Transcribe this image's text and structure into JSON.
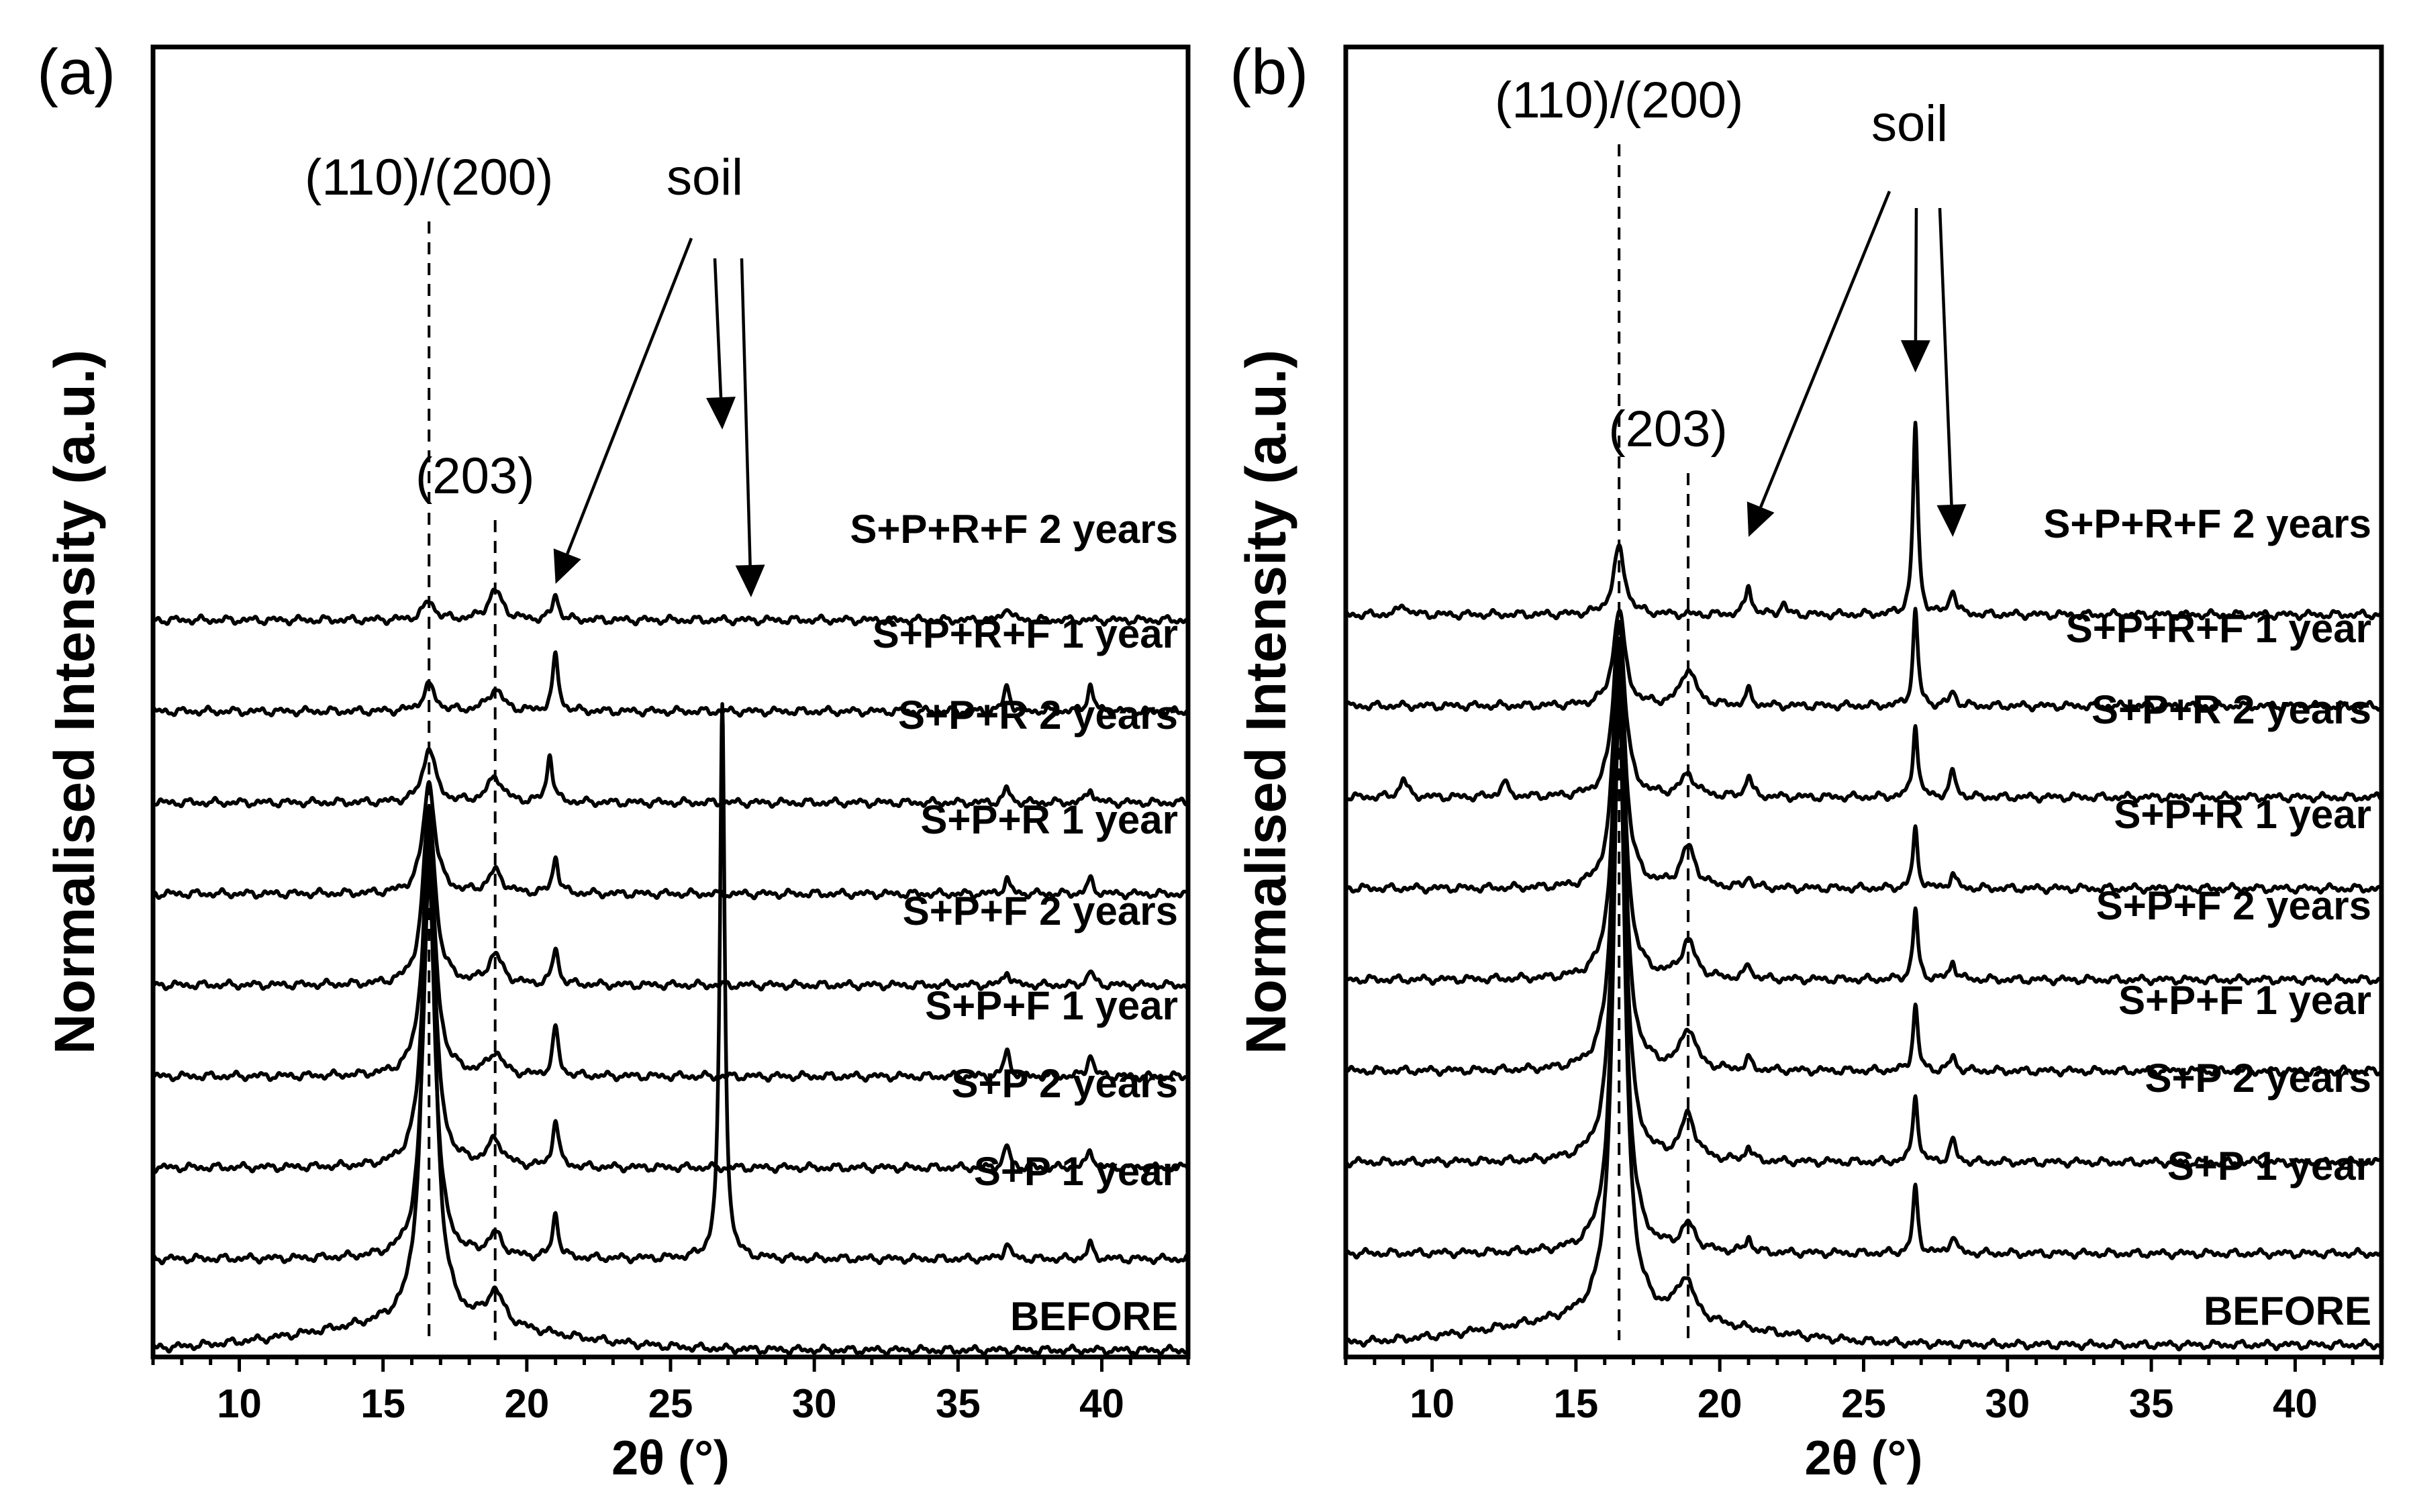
{
  "chart_data": [
    {
      "type": "line",
      "panel_label": "(a)",
      "xlabel": "2θ (°)",
      "ylabel": "Normalised Intensity (a.u.)",
      "xlim": [
        7,
        43
      ],
      "x_ticks": [
        10,
        15,
        20,
        25,
        30,
        35,
        40
      ],
      "y_ticks": [],
      "annotations": [
        {
          "text": "(110)/(200)",
          "x": 16.6,
          "dashed_guide": true
        },
        {
          "text": "(203)",
          "x": 18.9,
          "dashed_guide": true
        },
        {
          "text": "soil",
          "arrows_to_x": [
            21.0,
            26.8,
            27.8
          ]
        }
      ],
      "series": [
        {
          "name": "BEFORE",
          "offset": 0,
          "peaks": [
            {
              "x": 16.6,
              "height": 6.85,
              "width": 0.26
            },
            {
              "x": 18.9,
              "height": 0.45,
              "width": 0.35
            }
          ]
        },
        {
          "name": "S+P 1 year",
          "offset": 1,
          "peaks": [
            {
              "x": 16.6,
              "height": 5.2,
              "width": 0.25
            },
            {
              "x": 18.9,
              "height": 0.3,
              "width": 0.3
            },
            {
              "x": 21.0,
              "height": 0.6,
              "width": 0.12
            },
            {
              "x": 26.8,
              "height": 7.5,
              "width": 0.1
            },
            {
              "x": 36.7,
              "height": 0.22,
              "width": 0.12
            },
            {
              "x": 39.6,
              "height": 0.2,
              "width": 0.12
            }
          ]
        },
        {
          "name": "S+P 2 years",
          "offset": 2,
          "peaks": [
            {
              "x": 16.6,
              "height": 4.3,
              "width": 0.25
            },
            {
              "x": 18.9,
              "height": 0.35,
              "width": 0.3
            },
            {
              "x": 21.0,
              "height": 0.65,
              "width": 0.12
            },
            {
              "x": 36.7,
              "height": 0.3,
              "width": 0.12
            },
            {
              "x": 39.6,
              "height": 0.25,
              "width": 0.12
            }
          ]
        },
        {
          "name": "S+P+F 1 year",
          "offset": 3,
          "peaks": [
            {
              "x": 16.6,
              "height": 3.3,
              "width": 0.25
            },
            {
              "x": 18.9,
              "height": 0.3,
              "width": 0.3
            },
            {
              "x": 21.0,
              "height": 0.65,
              "width": 0.12
            },
            {
              "x": 36.7,
              "height": 0.35,
              "width": 0.12
            },
            {
              "x": 39.6,
              "height": 0.3,
              "width": 0.12
            }
          ]
        },
        {
          "name": "S+P+F 2 years",
          "offset": 4,
          "peaks": [
            {
              "x": 16.6,
              "height": 2.4,
              "width": 0.25
            },
            {
              "x": 18.9,
              "height": 0.4,
              "width": 0.3
            },
            {
              "x": 21.0,
              "height": 0.5,
              "width": 0.12
            },
            {
              "x": 36.7,
              "height": 0.2,
              "width": 0.12
            },
            {
              "x": 39.6,
              "height": 0.2,
              "width": 0.12
            }
          ]
        },
        {
          "name": "S+P+R 1 year",
          "offset": 5,
          "peaks": [
            {
              "x": 16.6,
              "height": 1.5,
              "width": 0.25
            },
            {
              "x": 18.9,
              "height": 0.3,
              "width": 0.3
            },
            {
              "x": 21.0,
              "height": 0.5,
              "width": 0.12
            },
            {
              "x": 36.7,
              "height": 0.2,
              "width": 0.12
            },
            {
              "x": 39.6,
              "height": 0.2,
              "width": 0.12
            }
          ]
        },
        {
          "name": "S+P+R 2 years",
          "offset": 6,
          "peaks": [
            {
              "x": 16.6,
              "height": 0.75,
              "width": 0.25
            },
            {
              "x": 18.9,
              "height": 0.35,
              "width": 0.3
            },
            {
              "x": 20.8,
              "height": 0.65,
              "width": 0.12
            },
            {
              "x": 36.7,
              "height": 0.2,
              "width": 0.12
            },
            {
              "x": 39.6,
              "height": 0.2,
              "width": 0.12
            }
          ]
        },
        {
          "name": "S+P+R+F 1 year",
          "offset": 7,
          "peaks": [
            {
              "x": 16.6,
              "height": 0.35,
              "width": 0.25
            },
            {
              "x": 18.9,
              "height": 0.3,
              "width": 0.3
            },
            {
              "x": 21.0,
              "height": 0.75,
              "width": 0.12
            },
            {
              "x": 36.7,
              "height": 0.35,
              "width": 0.12
            },
            {
              "x": 39.6,
              "height": 0.35,
              "width": 0.12
            }
          ]
        },
        {
          "name": "S+P+R+F 2 years",
          "offset": 8,
          "peaks": [
            {
              "x": 16.6,
              "height": 0.25,
              "width": 0.25
            },
            {
              "x": 18.9,
              "height": 0.4,
              "width": 0.3
            },
            {
              "x": 21.0,
              "height": 0.35,
              "width": 0.12
            },
            {
              "x": 36.7,
              "height": 0.2,
              "width": 0.12
            }
          ]
        }
      ]
    },
    {
      "type": "line",
      "panel_label": "(b)",
      "xlabel": "2θ (°)",
      "ylabel": "Normalised Intensity (a.u.)",
      "xlim": [
        7,
        43
      ],
      "x_ticks": [
        10,
        15,
        20,
        25,
        30,
        35,
        40
      ],
      "y_ticks": [],
      "annotations": [
        {
          "text": "(110)/(200)",
          "x": 16.5,
          "dashed_guide": true
        },
        {
          "text": "(203)",
          "x": 18.9,
          "dashed_guide": true
        },
        {
          "text": "soil",
          "arrows_to_x": [
            21.0,
            26.8,
            28.1
          ]
        }
      ],
      "series": [
        {
          "name": "BEFORE",
          "offset": 0,
          "peaks": [
            {
              "x": 16.5,
              "height": 8.55,
              "width": 0.24
            },
            {
              "x": 18.8,
              "height": 0.55,
              "width": 0.35
            }
          ]
        },
        {
          "name": "S+P 1 year",
          "offset": 1,
          "peaks": [
            {
              "x": 16.5,
              "height": 7.5,
              "width": 0.24
            },
            {
              "x": 18.9,
              "height": 0.35,
              "width": 0.3
            },
            {
              "x": 21.0,
              "height": 0.2,
              "width": 0.12
            },
            {
              "x": 26.8,
              "height": 0.9,
              "width": 0.1
            },
            {
              "x": 28.1,
              "height": 0.25,
              "width": 0.12
            }
          ]
        },
        {
          "name": "S+P 2 years",
          "offset": 2,
          "peaks": [
            {
              "x": 16.5,
              "height": 6.6,
              "width": 0.24
            },
            {
              "x": 18.9,
              "height": 0.6,
              "width": 0.3
            },
            {
              "x": 21.0,
              "height": 0.2,
              "width": 0.12
            },
            {
              "x": 26.8,
              "height": 0.95,
              "width": 0.1
            },
            {
              "x": 28.1,
              "height": 0.3,
              "width": 0.12
            }
          ]
        },
        {
          "name": "S+P+F 1 year",
          "offset": 3,
          "peaks": [
            {
              "x": 16.5,
              "height": 5.5,
              "width": 0.24
            },
            {
              "x": 18.9,
              "height": 0.55,
              "width": 0.3
            },
            {
              "x": 21.0,
              "height": 0.15,
              "width": 0.12
            },
            {
              "x": 26.8,
              "height": 0.9,
              "width": 0.1
            },
            {
              "x": 28.1,
              "height": 0.2,
              "width": 0.12
            }
          ]
        },
        {
          "name": "S+P+F 2 years",
          "offset": 4,
          "peaks": [
            {
              "x": 16.5,
              "height": 4.4,
              "width": 0.24
            },
            {
              "x": 18.9,
              "height": 0.5,
              "width": 0.3
            },
            {
              "x": 21.0,
              "height": 0.2,
              "width": 0.12
            },
            {
              "x": 26.8,
              "height": 0.95,
              "width": 0.1
            },
            {
              "x": 28.1,
              "height": 0.25,
              "width": 0.12
            }
          ]
        },
        {
          "name": "S+P+R 1 year",
          "offset": 5,
          "peaks": [
            {
              "x": 16.5,
              "height": 3.4,
              "width": 0.24
            },
            {
              "x": 18.9,
              "height": 0.55,
              "width": 0.3
            },
            {
              "x": 21.0,
              "height": 0.15,
              "width": 0.12
            },
            {
              "x": 26.8,
              "height": 0.8,
              "width": 0.1
            },
            {
              "x": 28.1,
              "height": 0.2,
              "width": 0.12
            }
          ]
        },
        {
          "name": "S+P+R 2 years",
          "offset": 6,
          "peaks": [
            {
              "x": 9.0,
              "height": 0.25,
              "width": 0.15
            },
            {
              "x": 12.5,
              "height": 0.2,
              "width": 0.15
            },
            {
              "x": 16.5,
              "height": 2.4,
              "width": 0.24
            },
            {
              "x": 18.9,
              "height": 0.3,
              "width": 0.3
            },
            {
              "x": 21.0,
              "height": 0.3,
              "width": 0.12
            },
            {
              "x": 26.8,
              "height": 1.0,
              "width": 0.1
            },
            {
              "x": 28.1,
              "height": 0.35,
              "width": 0.12
            }
          ]
        },
        {
          "name": "S+P+R+F 1 year",
          "offset": 7,
          "peaks": [
            {
              "x": 16.5,
              "height": 1.3,
              "width": 0.24
            },
            {
              "x": 18.9,
              "height": 0.5,
              "width": 0.3
            },
            {
              "x": 21.0,
              "height": 0.2,
              "width": 0.12
            },
            {
              "x": 26.8,
              "height": 1.3,
              "width": 0.1
            },
            {
              "x": 28.1,
              "height": 0.2,
              "width": 0.12
            }
          ]
        },
        {
          "name": "S+P+R+F 2 years",
          "offset": 8,
          "peaks": [
            {
              "x": 9.0,
              "height": 0.15,
              "width": 0.15
            },
            {
              "x": 16.5,
              "height": 0.9,
              "width": 0.24
            },
            {
              "x": 21.0,
              "height": 0.4,
              "width": 0.12
            },
            {
              "x": 22.2,
              "height": 0.15,
              "width": 0.12
            },
            {
              "x": 26.8,
              "height": 2.6,
              "width": 0.1
            },
            {
              "x": 28.1,
              "height": 0.35,
              "width": 0.12
            }
          ]
        }
      ]
    }
  ]
}
